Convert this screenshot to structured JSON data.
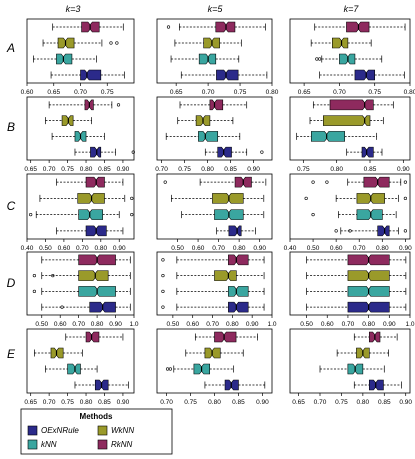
{
  "chart_data": {
    "type": "boxplot",
    "column_headers": [
      "k=3",
      "k=5",
      "k=7"
    ],
    "row_labels": [
      "A",
      "B",
      "C",
      "D",
      "E"
    ],
    "colors": {
      "OExNRule": "#2b2a8a",
      "kNN": "#3aa6a0",
      "WkNN": "#9a9a2a",
      "RkNN": "#8e2a5e"
    },
    "legend": {
      "title": "Methods",
      "items": [
        {
          "name": "OExNRule",
          "color": "#2b2a8a"
        },
        {
          "name": "WkNN",
          "color": "#9a9a2a"
        },
        {
          "name": "kNN",
          "color": "#3aa6a0"
        },
        {
          "name": "RkNN",
          "color": "#8e2a5e"
        }
      ]
    },
    "method_order_top_to_bottom": [
      "RkNN",
      "WkNN",
      "kNN",
      "OExNRule"
    ],
    "panels": [
      {
        "row": "A",
        "col": "k=3",
        "xlim": [
          0.6,
          0.8
        ],
        "ticks": [
          0.6,
          0.65,
          0.7,
          0.75
        ],
        "boxes": [
          {
            "method": "RkNN",
            "wlo": 0.648,
            "q1": 0.702,
            "med": 0.718,
            "q3": 0.735,
            "whi": 0.78,
            "out": []
          },
          {
            "method": "WkNN",
            "wlo": 0.63,
            "q1": 0.658,
            "med": 0.672,
            "q3": 0.688,
            "whi": 0.74,
            "out": [
              0.757,
              0.768
            ]
          },
          {
            "method": "kNN",
            "wlo": 0.612,
            "q1": 0.655,
            "med": 0.668,
            "q3": 0.684,
            "whi": 0.73,
            "out": []
          },
          {
            "method": "OExNRule",
            "wlo": 0.645,
            "q1": 0.7,
            "med": 0.712,
            "q3": 0.738,
            "whi": 0.782,
            "out": []
          }
        ]
      },
      {
        "row": "A",
        "col": "k=5",
        "xlim": [
          0.62,
          0.8
        ],
        "ticks": [
          0.65,
          0.7,
          0.75,
          0.8
        ],
        "boxes": [
          {
            "method": "RkNN",
            "wlo": 0.655,
            "q1": 0.712,
            "med": 0.728,
            "q3": 0.742,
            "whi": 0.79,
            "out": [
              0.638
            ]
          },
          {
            "method": "WkNN",
            "wlo": 0.648,
            "q1": 0.693,
            "med": 0.706,
            "q3": 0.718,
            "whi": 0.752,
            "out": []
          },
          {
            "method": "kNN",
            "wlo": 0.642,
            "q1": 0.686,
            "med": 0.7,
            "q3": 0.712,
            "whi": 0.748,
            "out": []
          },
          {
            "method": "OExNRule",
            "wlo": 0.658,
            "q1": 0.713,
            "med": 0.728,
            "q3": 0.747,
            "whi": 0.792,
            "out": []
          }
        ]
      },
      {
        "row": "A",
        "col": "k=7",
        "xlim": [
          0.63,
          0.8
        ],
        "ticks": [
          0.65,
          0.7,
          0.75,
          0.8
        ],
        "boxes": [
          {
            "method": "RkNN",
            "wlo": 0.665,
            "q1": 0.71,
            "med": 0.727,
            "q3": 0.742,
            "whi": 0.793,
            "out": []
          },
          {
            "method": "WkNN",
            "wlo": 0.66,
            "q1": 0.69,
            "med": 0.703,
            "q3": 0.712,
            "whi": 0.745,
            "out": []
          },
          {
            "method": "kNN",
            "wlo": 0.675,
            "q1": 0.7,
            "med": 0.712,
            "q3": 0.722,
            "whi": 0.76,
            "out": [
              0.668,
              0.672
            ]
          },
          {
            "method": "OExNRule",
            "wlo": 0.672,
            "q1": 0.722,
            "med": 0.738,
            "q3": 0.75,
            "whi": 0.792,
            "out": []
          }
        ]
      },
      {
        "row": "B",
        "col": "k=3",
        "xlim": [
          0.64,
          0.93
        ],
        "ticks": [
          0.65,
          0.7,
          0.75,
          0.8,
          0.85,
          0.9
        ],
        "boxes": [
          {
            "method": "RkNN",
            "wlo": 0.7,
            "q1": 0.797,
            "med": 0.809,
            "q3": 0.82,
            "whi": 0.87,
            "out": [
              0.888
            ]
          },
          {
            "method": "WkNN",
            "wlo": 0.69,
            "q1": 0.735,
            "med": 0.752,
            "q3": 0.765,
            "whi": 0.815,
            "out": []
          },
          {
            "method": "kNN",
            "wlo": 0.708,
            "q1": 0.77,
            "med": 0.785,
            "q3": 0.8,
            "whi": 0.85,
            "out": []
          },
          {
            "method": "OExNRule",
            "wlo": 0.77,
            "q1": 0.812,
            "med": 0.829,
            "q3": 0.84,
            "whi": 0.88,
            "out": [
              0.928
            ]
          }
        ]
      },
      {
        "row": "B",
        "col": "k=5",
        "xlim": [
          0.69,
          0.94
        ],
        "ticks": [
          0.7,
          0.75,
          0.8,
          0.85,
          0.9
        ],
        "boxes": [
          {
            "method": "RkNN",
            "wlo": 0.74,
            "q1": 0.805,
            "med": 0.815,
            "q3": 0.833,
            "whi": 0.885,
            "out": []
          },
          {
            "method": "WkNN",
            "wlo": 0.735,
            "q1": 0.775,
            "med": 0.79,
            "q3": 0.805,
            "whi": 0.855,
            "out": []
          },
          {
            "method": "kNN",
            "wlo": 0.71,
            "q1": 0.78,
            "med": 0.795,
            "q3": 0.822,
            "whi": 0.87,
            "out": []
          },
          {
            "method": "OExNRule",
            "wlo": 0.795,
            "q1": 0.822,
            "med": 0.835,
            "q3": 0.852,
            "whi": 0.885,
            "out": [
              0.918
            ]
          }
        ]
      },
      {
        "row": "B",
        "col": "k=7",
        "xlim": [
          0.73,
          0.91
        ],
        "ticks": [
          0.75,
          0.8,
          0.85,
          0.9
        ],
        "boxes": [
          {
            "method": "RkNN",
            "wlo": 0.765,
            "q1": 0.79,
            "med": 0.842,
            "q3": 0.855,
            "whi": 0.885,
            "out": []
          },
          {
            "method": "WkNN",
            "wlo": 0.76,
            "q1": 0.78,
            "med": 0.842,
            "q3": 0.85,
            "whi": 0.87,
            "out": []
          },
          {
            "method": "kNN",
            "wlo": 0.74,
            "q1": 0.762,
            "med": 0.785,
            "q3": 0.812,
            "whi": 0.86,
            "out": []
          },
          {
            "method": "OExNRule",
            "wlo": 0.815,
            "q1": 0.838,
            "med": 0.845,
            "q3": 0.855,
            "whi": 0.868,
            "out": []
          }
        ]
      },
      {
        "row": "C",
        "col": "k=3",
        "xlim": [
          0.4,
          0.98
        ],
        "ticks": [
          0.4,
          0.5,
          0.6,
          0.7,
          0.8,
          0.9
        ],
        "boxes": [
          {
            "method": "RkNN",
            "wlo": 0.56,
            "q1": 0.72,
            "med": 0.775,
            "q3": 0.82,
            "whi": 0.92,
            "out": []
          },
          {
            "method": "WkNN",
            "wlo": 0.47,
            "q1": 0.675,
            "med": 0.75,
            "q3": 0.82,
            "whi": 0.93,
            "out": [
              0.968
            ]
          },
          {
            "method": "kNN",
            "wlo": 0.45,
            "q1": 0.68,
            "med": 0.74,
            "q3": 0.81,
            "whi": 0.9,
            "out": [
              0.42,
              0.968
            ]
          },
          {
            "method": "OExNRule",
            "wlo": 0.56,
            "q1": 0.72,
            "med": 0.775,
            "q3": 0.83,
            "whi": 0.92,
            "out": []
          }
        ]
      },
      {
        "row": "C",
        "col": "k=5",
        "xlim": [
          0.4,
          0.96
        ],
        "ticks": [
          0.5,
          0.6,
          0.7,
          0.8,
          0.9
        ],
        "boxes": [
          {
            "method": "RkNN",
            "wlo": 0.61,
            "q1": 0.78,
            "med": 0.82,
            "q3": 0.86,
            "whi": 0.93,
            "out": [
              0.44
            ]
          },
          {
            "method": "WkNN",
            "wlo": 0.47,
            "q1": 0.67,
            "med": 0.75,
            "q3": 0.82,
            "whi": 0.92,
            "out": []
          },
          {
            "method": "kNN",
            "wlo": 0.52,
            "q1": 0.68,
            "med": 0.75,
            "q3": 0.82,
            "whi": 0.92,
            "out": []
          },
          {
            "method": "OExNRule",
            "wlo": 0.69,
            "q1": 0.75,
            "med": 0.79,
            "q3": 0.81,
            "whi": 0.88,
            "out": []
          }
        ]
      },
      {
        "row": "C",
        "col": "k=7",
        "xlim": [
          0.4,
          0.92
        ],
        "ticks": [
          0.4,
          0.5,
          0.6,
          0.7,
          0.8,
          0.9
        ],
        "boxes": [
          {
            "method": "RkNN",
            "wlo": 0.65,
            "q1": 0.72,
            "med": 0.78,
            "q3": 0.83,
            "whi": 0.88,
            "out": [
              0.5,
              0.56,
              0.9
            ]
          },
          {
            "method": "WkNN",
            "wlo": 0.6,
            "q1": 0.69,
            "med": 0.75,
            "q3": 0.81,
            "whi": 0.87,
            "out": [
              0.47,
              0.9
            ]
          },
          {
            "method": "kNN",
            "wlo": 0.61,
            "q1": 0.69,
            "med": 0.75,
            "q3": 0.8,
            "whi": 0.86,
            "out": [
              0.5
            ]
          },
          {
            "method": "OExNRule",
            "wlo": 0.62,
            "q1": 0.78,
            "med": 0.81,
            "q3": 0.83,
            "whi": 0.87,
            "out": [
              0.6,
              0.66,
              0.9
            ]
          }
        ]
      },
      {
        "row": "D",
        "col": "k=3",
        "xlim": [
          0.42,
          1.0
        ],
        "ticks": [
          0.5,
          0.6,
          0.7,
          0.8,
          0.9,
          1.0
        ],
        "boxes": [
          {
            "method": "RkNN",
            "wlo": 0.5,
            "q1": 0.7,
            "med": 0.8,
            "q3": 0.9,
            "whi": 0.98,
            "out": []
          },
          {
            "method": "WkNN",
            "wlo": 0.5,
            "q1": 0.7,
            "med": 0.79,
            "q3": 0.86,
            "whi": 0.98,
            "out": [
              0.46,
              0.56
            ]
          },
          {
            "method": "kNN",
            "wlo": 0.5,
            "q1": 0.7,
            "med": 0.8,
            "q3": 0.9,
            "whi": 0.98,
            "out": [
              0.46
            ]
          },
          {
            "method": "OExNRule",
            "wlo": 0.5,
            "q1": 0.76,
            "med": 0.83,
            "q3": 0.9,
            "whi": 0.98,
            "out": [
              0.61
            ]
          }
        ]
      },
      {
        "row": "D",
        "col": "k=5",
        "xlim": [
          0.42,
          1.0
        ],
        "ticks": [
          0.5,
          0.6,
          0.7,
          0.8,
          0.9,
          1.0
        ],
        "boxes": [
          {
            "method": "RkNN",
            "wlo": 0.52,
            "q1": 0.78,
            "med": 0.82,
            "q3": 0.88,
            "whi": 0.96,
            "out": [
              0.45
            ]
          },
          {
            "method": "WkNN",
            "wlo": 0.52,
            "q1": 0.71,
            "med": 0.78,
            "q3": 0.82,
            "whi": 0.96,
            "out": [
              0.45
            ]
          },
          {
            "method": "kNN",
            "wlo": 0.52,
            "q1": 0.78,
            "med": 0.82,
            "q3": 0.88,
            "whi": 0.96,
            "out": [
              0.45
            ]
          },
          {
            "method": "OExNRule",
            "wlo": 0.52,
            "q1": 0.78,
            "med": 0.82,
            "q3": 0.88,
            "whi": 0.96,
            "out": [
              0.45
            ]
          }
        ]
      },
      {
        "row": "D",
        "col": "k=7",
        "xlim": [
          0.42,
          1.0
        ],
        "ticks": [
          0.5,
          0.6,
          0.7,
          0.8,
          0.9,
          1.0
        ],
        "boxes": [
          {
            "method": "RkNN",
            "wlo": 0.5,
            "q1": 0.7,
            "med": 0.8,
            "q3": 0.9,
            "whi": 0.98,
            "out": []
          },
          {
            "method": "WkNN",
            "wlo": 0.5,
            "q1": 0.7,
            "med": 0.8,
            "q3": 0.9,
            "whi": 0.98,
            "out": []
          },
          {
            "method": "kNN",
            "wlo": 0.5,
            "q1": 0.7,
            "med": 0.8,
            "q3": 0.9,
            "whi": 0.98,
            "out": []
          },
          {
            "method": "OExNRule",
            "wlo": 0.5,
            "q1": 0.7,
            "med": 0.8,
            "q3": 0.9,
            "whi": 0.98,
            "out": []
          }
        ]
      },
      {
        "row": "E",
        "col": "k=3",
        "xlim": [
          0.64,
          0.93
        ],
        "ticks": [
          0.65,
          0.7,
          0.75,
          0.8,
          0.85,
          0.9
        ],
        "boxes": [
          {
            "method": "RkNN",
            "wlo": 0.745,
            "q1": 0.8,
            "med": 0.815,
            "q3": 0.835,
            "whi": 0.9,
            "out": []
          },
          {
            "method": "WkNN",
            "wlo": 0.66,
            "q1": 0.705,
            "med": 0.72,
            "q3": 0.738,
            "whi": 0.79,
            "out": []
          },
          {
            "method": "kNN",
            "wlo": 0.69,
            "q1": 0.75,
            "med": 0.77,
            "q3": 0.785,
            "whi": 0.83,
            "out": []
          },
          {
            "method": "OExNRule",
            "wlo": 0.77,
            "q1": 0.825,
            "med": 0.842,
            "q3": 0.86,
            "whi": 0.915,
            "out": []
          }
        ]
      },
      {
        "row": "E",
        "col": "k=5",
        "xlim": [
          0.68,
          0.92
        ],
        "ticks": [
          0.7,
          0.75,
          0.8,
          0.85,
          0.9
        ],
        "boxes": [
          {
            "method": "RkNN",
            "wlo": 0.76,
            "q1": 0.8,
            "med": 0.82,
            "q3": 0.845,
            "whi": 0.89,
            "out": []
          },
          {
            "method": "WkNN",
            "wlo": 0.74,
            "q1": 0.78,
            "med": 0.795,
            "q3": 0.812,
            "whi": 0.86,
            "out": []
          },
          {
            "method": "kNN",
            "wlo": 0.715,
            "q1": 0.757,
            "med": 0.773,
            "q3": 0.79,
            "whi": 0.84,
            "out": [
              0.702,
              0.708
            ]
          },
          {
            "method": "OExNRule",
            "wlo": 0.78,
            "q1": 0.822,
            "med": 0.835,
            "q3": 0.85,
            "whi": 0.905,
            "out": []
          }
        ]
      },
      {
        "row": "E",
        "col": "k=7",
        "xlim": [
          0.63,
          0.91
        ],
        "ticks": [
          0.65,
          0.7,
          0.75,
          0.8,
          0.85,
          0.9
        ],
        "boxes": [
          {
            "method": "RkNN",
            "wlo": 0.78,
            "q1": 0.815,
            "med": 0.828,
            "q3": 0.84,
            "whi": 0.88,
            "out": []
          },
          {
            "method": "WkNN",
            "wlo": 0.74,
            "q1": 0.785,
            "med": 0.8,
            "q3": 0.815,
            "whi": 0.86,
            "out": []
          },
          {
            "method": "kNN",
            "wlo": 0.7,
            "q1": 0.765,
            "med": 0.782,
            "q3": 0.8,
            "whi": 0.85,
            "out": []
          },
          {
            "method": "OExNRule",
            "wlo": 0.78,
            "q1": 0.815,
            "med": 0.83,
            "q3": 0.848,
            "whi": 0.89,
            "out": []
          }
        ]
      }
    ]
  }
}
